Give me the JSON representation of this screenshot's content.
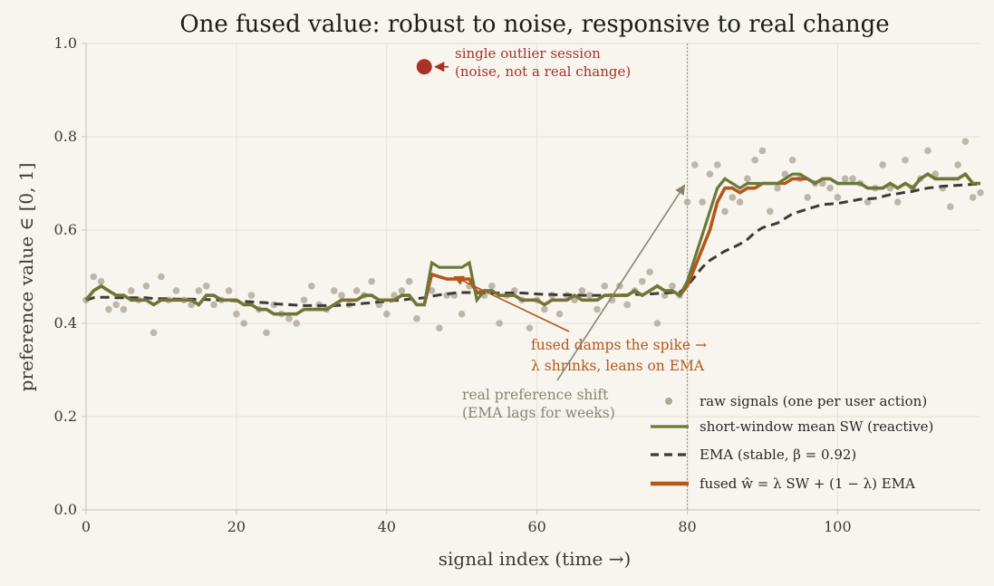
{
  "chart_data": {
    "type": "line",
    "title": "One fused value: robust to noise, responsive to real change",
    "xlabel": "signal index  (time →)",
    "ylabel": "preference value  ∈ [0, 1]",
    "xlim": [
      0,
      119
    ],
    "ylim": [
      0.0,
      1.0
    ],
    "x_ticks": [
      0,
      20,
      40,
      60,
      80,
      100
    ],
    "x_tick_labels": [
      "0",
      "20",
      "40",
      "60",
      "80",
      "100"
    ],
    "y_ticks": [
      0.0,
      0.2,
      0.4,
      0.6,
      0.8,
      1.0
    ],
    "y_tick_labels": [
      "0.0",
      "0.2",
      "0.4",
      "0.6",
      "0.8",
      "1.0"
    ],
    "grid": true,
    "legend_position": "bottom-right",
    "vertical_marker_x": 80,
    "colors": {
      "background": "#f8f5ee",
      "grid": "#e6e0d3",
      "axis": "#cfc7b5",
      "raw": "#aea697",
      "sw": "#687a3a",
      "ema": "#3c3a36",
      "fused": "#b5561b",
      "outlier": "#a83226",
      "annotation_grey": "#8a8372"
    },
    "series": [
      {
        "name": "raw signals (one per user action)",
        "style": "scatter",
        "x": [
          0,
          1,
          2,
          3,
          4,
          5,
          6,
          7,
          8,
          9,
          10,
          11,
          12,
          13,
          14,
          15,
          16,
          17,
          18,
          19,
          20,
          21,
          22,
          23,
          24,
          25,
          26,
          27,
          28,
          29,
          30,
          31,
          32,
          33,
          34,
          35,
          36,
          37,
          38,
          39,
          40,
          41,
          42,
          43,
          44,
          45,
          46,
          47,
          48,
          49,
          50,
          51,
          52,
          53,
          54,
          55,
          56,
          57,
          58,
          59,
          60,
          61,
          62,
          63,
          64,
          65,
          66,
          67,
          68,
          69,
          70,
          71,
          72,
          73,
          74,
          75,
          76,
          77,
          78,
          79,
          80,
          81,
          82,
          83,
          84,
          85,
          86,
          87,
          88,
          89,
          90,
          91,
          92,
          93,
          94,
          95,
          96,
          97,
          98,
          99,
          100,
          101,
          102,
          103,
          104,
          105,
          106,
          107,
          108,
          109,
          110,
          111,
          112,
          113,
          114,
          115,
          116,
          117,
          118,
          119
        ],
        "values": [
          0.45,
          0.5,
          0.49,
          0.43,
          0.44,
          0.43,
          0.47,
          0.45,
          0.48,
          0.38,
          0.5,
          0.45,
          0.47,
          0.45,
          0.44,
          0.47,
          0.48,
          0.44,
          0.45,
          0.47,
          0.42,
          0.4,
          0.46,
          0.43,
          0.38,
          0.44,
          0.42,
          0.41,
          0.4,
          0.45,
          0.48,
          0.44,
          0.43,
          0.47,
          0.46,
          0.44,
          0.47,
          0.46,
          0.49,
          0.44,
          0.42,
          0.46,
          0.47,
          0.49,
          0.41,
          0.95,
          0.47,
          0.39,
          0.46,
          0.46,
          0.42,
          0.48,
          0.47,
          0.46,
          0.48,
          0.4,
          0.46,
          0.47,
          0.45,
          0.39,
          0.45,
          0.43,
          0.46,
          0.42,
          0.46,
          0.45,
          0.47,
          0.46,
          0.43,
          0.48,
          0.45,
          0.48,
          0.44,
          0.47,
          0.49,
          0.51,
          0.4,
          0.46,
          0.48,
          0.46,
          0.66,
          0.74,
          0.66,
          0.72,
          0.74,
          0.64,
          0.67,
          0.66,
          0.71,
          0.75,
          0.77,
          0.64,
          0.69,
          0.72,
          0.75,
          0.71,
          0.67,
          0.7,
          0.7,
          0.69,
          0.67,
          0.71,
          0.71,
          0.7,
          0.66,
          0.69,
          0.74,
          0.69,
          0.66,
          0.75,
          0.69,
          0.71,
          0.77,
          0.72,
          0.69,
          0.65,
          0.74,
          0.79,
          0.67,
          0.68
        ]
      },
      {
        "name": "short-window mean  SW  (reactive)",
        "style": "solid",
        "x": [
          0,
          1,
          2,
          3,
          4,
          5,
          6,
          7,
          8,
          9,
          10,
          11,
          12,
          13,
          14,
          15,
          16,
          17,
          18,
          19,
          20,
          21,
          22,
          23,
          24,
          25,
          26,
          27,
          28,
          29,
          30,
          31,
          32,
          33,
          34,
          35,
          36,
          37,
          38,
          39,
          40,
          41,
          42,
          43,
          44,
          45,
          46,
          47,
          48,
          49,
          50,
          51,
          52,
          53,
          54,
          55,
          56,
          57,
          58,
          59,
          60,
          61,
          62,
          63,
          64,
          65,
          66,
          67,
          68,
          69,
          70,
          71,
          72,
          73,
          74,
          75,
          76,
          77,
          78,
          79,
          80,
          81,
          82,
          83,
          84,
          85,
          86,
          87,
          88,
          89,
          90,
          91,
          92,
          93,
          94,
          95,
          96,
          97,
          98,
          99,
          100,
          101,
          102,
          103,
          104,
          105,
          106,
          107,
          108,
          109,
          110,
          111,
          112,
          113,
          114,
          115,
          116,
          117,
          118,
          119
        ],
        "values": [
          0.45,
          0.47,
          0.48,
          0.47,
          0.46,
          0.46,
          0.45,
          0.45,
          0.45,
          0.44,
          0.45,
          0.45,
          0.45,
          0.45,
          0.45,
          0.44,
          0.46,
          0.46,
          0.45,
          0.45,
          0.45,
          0.44,
          0.44,
          0.43,
          0.43,
          0.42,
          0.42,
          0.42,
          0.42,
          0.43,
          0.43,
          0.43,
          0.43,
          0.44,
          0.45,
          0.45,
          0.45,
          0.46,
          0.46,
          0.45,
          0.45,
          0.45,
          0.46,
          0.46,
          0.44,
          0.44,
          0.53,
          0.52,
          0.52,
          0.52,
          0.52,
          0.53,
          0.45,
          0.47,
          0.47,
          0.46,
          0.46,
          0.46,
          0.45,
          0.45,
          0.45,
          0.44,
          0.45,
          0.45,
          0.45,
          0.46,
          0.45,
          0.45,
          0.45,
          0.46,
          0.46,
          0.46,
          0.46,
          0.47,
          0.46,
          0.47,
          0.48,
          0.47,
          0.47,
          0.46,
          0.49,
          0.54,
          0.59,
          0.64,
          0.69,
          0.71,
          0.7,
          0.69,
          0.7,
          0.7,
          0.7,
          0.7,
          0.7,
          0.71,
          0.72,
          0.72,
          0.71,
          0.7,
          0.71,
          0.71,
          0.7,
          0.7,
          0.7,
          0.7,
          0.69,
          0.69,
          0.69,
          0.7,
          0.69,
          0.7,
          0.69,
          0.71,
          0.72,
          0.71,
          0.71,
          0.71,
          0.71,
          0.72,
          0.7,
          0.7
        ]
      },
      {
        "name": "EMA  (stable, β = 0.92)",
        "style": "dashed",
        "x": [
          0,
          1,
          2,
          3,
          4,
          5,
          6,
          7,
          8,
          9,
          10,
          11,
          12,
          13,
          14,
          15,
          16,
          17,
          18,
          19,
          20,
          21,
          22,
          23,
          24,
          25,
          26,
          27,
          28,
          29,
          30,
          31,
          32,
          33,
          34,
          35,
          36,
          37,
          38,
          39,
          40,
          41,
          42,
          43,
          44,
          45,
          46,
          47,
          48,
          49,
          50,
          51,
          52,
          53,
          54,
          55,
          56,
          57,
          58,
          59,
          60,
          61,
          62,
          63,
          64,
          65,
          66,
          67,
          68,
          69,
          70,
          71,
          72,
          73,
          74,
          75,
          76,
          77,
          78,
          79,
          80,
          81,
          82,
          83,
          84,
          85,
          86,
          87,
          88,
          89,
          90,
          91,
          92,
          93,
          94,
          95,
          96,
          97,
          98,
          99,
          100,
          101,
          102,
          103,
          104,
          105,
          106,
          107,
          108,
          109,
          110,
          111,
          112,
          113,
          114,
          115,
          116,
          117,
          118,
          119
        ],
        "values": [
          0.45,
          0.455,
          0.456,
          0.456,
          0.455,
          0.455,
          0.455,
          0.455,
          0.455,
          0.453,
          0.453,
          0.453,
          0.452,
          0.452,
          0.452,
          0.451,
          0.451,
          0.45,
          0.45,
          0.449,
          0.448,
          0.447,
          0.446,
          0.445,
          0.444,
          0.442,
          0.441,
          0.44,
          0.439,
          0.438,
          0.438,
          0.438,
          0.438,
          0.438,
          0.439,
          0.44,
          0.441,
          0.443,
          0.444,
          0.446,
          0.447,
          0.449,
          0.45,
          0.452,
          0.453,
          0.455,
          0.458,
          0.461,
          0.463,
          0.465,
          0.466,
          0.466,
          0.465,
          0.465,
          0.465,
          0.465,
          0.465,
          0.465,
          0.465,
          0.464,
          0.463,
          0.462,
          0.462,
          0.461,
          0.461,
          0.461,
          0.46,
          0.46,
          0.46,
          0.46,
          0.461,
          0.461,
          0.461,
          0.462,
          0.462,
          0.463,
          0.464,
          0.465,
          0.466,
          0.467,
          0.48,
          0.5,
          0.52,
          0.535,
          0.545,
          0.555,
          0.562,
          0.57,
          0.58,
          0.595,
          0.605,
          0.61,
          0.615,
          0.625,
          0.635,
          0.64,
          0.645,
          0.65,
          0.655,
          0.656,
          0.657,
          0.66,
          0.663,
          0.666,
          0.667,
          0.668,
          0.672,
          0.676,
          0.678,
          0.681,
          0.683,
          0.687,
          0.69,
          0.692,
          0.694,
          0.695,
          0.696,
          0.697,
          0.698,
          0.698
        ]
      },
      {
        "name": "fused  ŵ = λ SW + (1 − λ) EMA",
        "style": "solid",
        "x": [
          0,
          1,
          2,
          3,
          4,
          5,
          6,
          7,
          8,
          9,
          10,
          11,
          12,
          13,
          14,
          15,
          16,
          17,
          18,
          19,
          20,
          21,
          22,
          23,
          24,
          25,
          26,
          27,
          28,
          29,
          30,
          31,
          32,
          33,
          34,
          35,
          36,
          37,
          38,
          39,
          40,
          41,
          42,
          43,
          44,
          45,
          46,
          47,
          48,
          49,
          50,
          51,
          52,
          53,
          54,
          55,
          56,
          57,
          58,
          59,
          60,
          61,
          62,
          63,
          64,
          65,
          66,
          67,
          68,
          69,
          70,
          71,
          72,
          73,
          74,
          75,
          76,
          77,
          78,
          79,
          80,
          81,
          82,
          83,
          84,
          85,
          86,
          87,
          88,
          89,
          90,
          91,
          92,
          93,
          94,
          95,
          96,
          97,
          98,
          99,
          100,
          101,
          102,
          103,
          104,
          105,
          106,
          107,
          108,
          109,
          110,
          111,
          112,
          113,
          114,
          115,
          116,
          117,
          118,
          119
        ],
        "values": [
          0.45,
          0.47,
          0.48,
          0.47,
          0.46,
          0.46,
          0.45,
          0.45,
          0.45,
          0.44,
          0.45,
          0.45,
          0.45,
          0.45,
          0.45,
          0.44,
          0.46,
          0.46,
          0.45,
          0.45,
          0.45,
          0.44,
          0.44,
          0.43,
          0.43,
          0.42,
          0.42,
          0.42,
          0.42,
          0.43,
          0.43,
          0.43,
          0.43,
          0.44,
          0.45,
          0.45,
          0.45,
          0.46,
          0.46,
          0.45,
          0.45,
          0.45,
          0.46,
          0.46,
          0.44,
          0.44,
          0.505,
          0.5,
          0.495,
          0.495,
          0.495,
          0.495,
          0.465,
          0.47,
          0.47,
          0.46,
          0.46,
          0.46,
          0.45,
          0.45,
          0.45,
          0.44,
          0.45,
          0.45,
          0.45,
          0.46,
          0.45,
          0.45,
          0.45,
          0.46,
          0.46,
          0.46,
          0.46,
          0.47,
          0.46,
          0.47,
          0.48,
          0.47,
          0.47,
          0.46,
          0.48,
          0.52,
          0.56,
          0.6,
          0.66,
          0.69,
          0.69,
          0.68,
          0.69,
          0.69,
          0.7,
          0.7,
          0.7,
          0.7,
          0.71,
          0.71,
          0.71,
          0.7,
          0.71,
          0.71,
          0.7,
          0.7,
          0.7,
          0.7,
          0.69,
          0.69,
          0.69,
          0.7,
          0.69,
          0.7,
          0.69,
          0.71,
          0.72,
          0.71,
          0.71,
          0.71,
          0.71,
          0.72,
          0.7,
          0.7
        ]
      }
    ],
    "annotations": [
      {
        "id": "outlier",
        "lines": [
          "single outlier session",
          "(noise, not a real change)"
        ],
        "point": [
          45,
          0.95
        ]
      },
      {
        "id": "damp",
        "lines": [
          "fused damps the spike  →",
          "λ shrinks, leans on EMA"
        ],
        "point": [
          49,
          0.5
        ]
      },
      {
        "id": "shift",
        "lines": [
          "real preference shift",
          "(EMA lags for weeks)"
        ],
        "point": [
          80,
          0.7
        ]
      }
    ]
  }
}
